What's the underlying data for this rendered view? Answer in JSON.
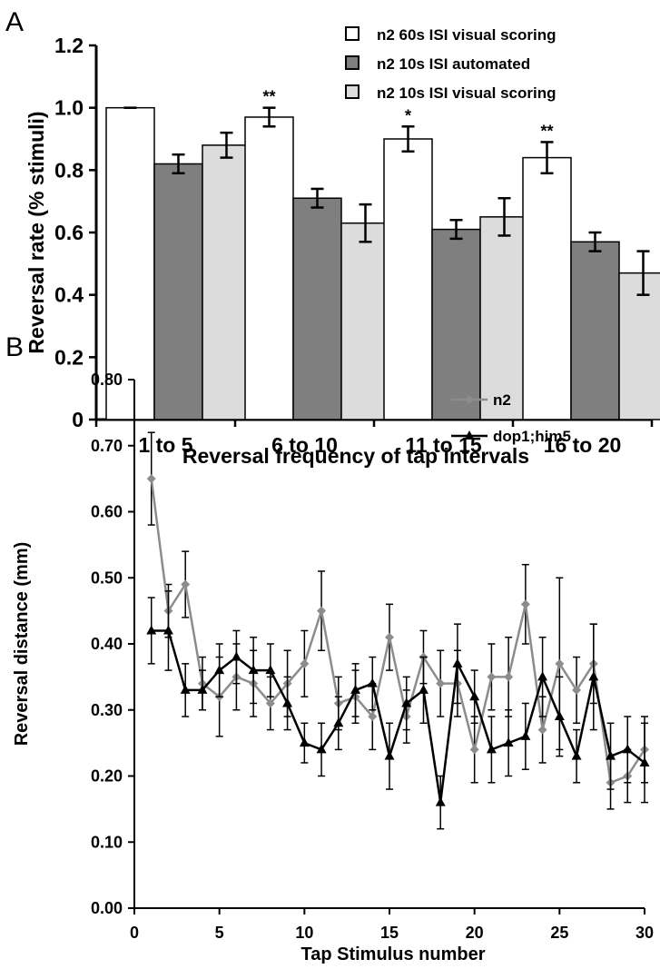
{
  "figure": {
    "panel_a_letter": "A",
    "panel_b_letter": "B"
  },
  "chart_data": [
    {
      "type": "bar",
      "xlabel": "Reversal frequency of tap intervals",
      "ylabel": "Reversal rate (% stimuli)",
      "ylim": [
        0,
        1.2
      ],
      "yticks": [
        "0",
        "0.2",
        "0.4",
        "0.6",
        "0.8",
        "1.0",
        "1.2"
      ],
      "ytick_values": [
        0,
        0.2,
        0.4,
        0.6,
        0.8,
        1.0,
        1.2
      ],
      "categories": [
        "1 to 5",
        "6 to 10",
        "11 to 15",
        "16 to 20"
      ],
      "series": [
        {
          "name": "n2 60s ISI visual scoring",
          "color": "#ffffff",
          "values": [
            1.0,
            0.97,
            0.9,
            0.84
          ],
          "errors": [
            0.0,
            0.03,
            0.04,
            0.05
          ]
        },
        {
          "name": "n2 10s ISI automated",
          "color": "#7f7f7f",
          "values": [
            0.82,
            0.71,
            0.61,
            0.57
          ],
          "errors": [
            0.03,
            0.03,
            0.03,
            0.03
          ]
        },
        {
          "name": "n2 10s ISI visual scoring",
          "color": "#dcdcdc",
          "values": [
            0.88,
            0.63,
            0.65,
            0.47
          ],
          "errors": [
            0.04,
            0.06,
            0.06,
            0.07
          ]
        }
      ],
      "significance": [
        "",
        "**",
        "*",
        "**"
      ],
      "legend_position": "top-right",
      "grid": false
    },
    {
      "type": "line",
      "xlabel": "Tap Stimulus number",
      "ylabel": "Reversal distance (mm)",
      "xlim": [
        0,
        30
      ],
      "ylim": [
        0,
        0.8
      ],
      "xticks": [
        "0",
        "5",
        "10",
        "15",
        "20",
        "25",
        "30"
      ],
      "xtick_values": [
        0,
        5,
        10,
        15,
        20,
        25,
        30
      ],
      "yticks": [
        "0.00",
        "0.10",
        "0.20",
        "0.30",
        "0.40",
        "0.50",
        "0.60",
        "0.70",
        "0.80"
      ],
      "ytick_values": [
        0,
        0.1,
        0.2,
        0.3,
        0.4,
        0.5,
        0.6,
        0.7,
        0.8
      ],
      "x": [
        1,
        2,
        3,
        4,
        5,
        6,
        7,
        8,
        9,
        10,
        11,
        12,
        13,
        14,
        15,
        16,
        17,
        18,
        19,
        20,
        21,
        22,
        23,
        24,
        25,
        26,
        27,
        28,
        29,
        30
      ],
      "series": [
        {
          "name": "n2",
          "color": "#8c8c8c",
          "marker": "diamond",
          "values": [
            0.65,
            0.45,
            0.49,
            0.34,
            0.32,
            0.35,
            0.34,
            0.31,
            0.34,
            0.37,
            0.45,
            0.31,
            0.32,
            0.29,
            0.41,
            0.29,
            0.38,
            0.34,
            0.34,
            0.24,
            0.35,
            0.35,
            0.46,
            0.27,
            0.37,
            0.33,
            0.37,
            0.19,
            0.2,
            0.24
          ],
          "errors": [
            0.07,
            0.04,
            0.05,
            0.04,
            0.06,
            0.05,
            0.05,
            0.04,
            0.05,
            0.05,
            0.06,
            0.04,
            0.04,
            0.05,
            0.05,
            0.04,
            0.04,
            0.05,
            0.05,
            0.05,
            0.05,
            0.06,
            0.06,
            0.05,
            0.13,
            0.05,
            0.06,
            0.04,
            0.04,
            0.05
          ]
        },
        {
          "name": "dop1;him5",
          "color": "#000000",
          "marker": "triangle",
          "values": [
            0.42,
            0.42,
            0.33,
            0.33,
            0.36,
            0.38,
            0.36,
            0.36,
            0.31,
            0.25,
            0.24,
            0.28,
            0.33,
            0.34,
            0.23,
            0.31,
            0.33,
            0.16,
            0.37,
            0.32,
            0.24,
            0.25,
            0.26,
            0.35,
            0.29,
            0.23,
            0.35,
            0.23,
            0.24,
            0.22
          ],
          "errors": [
            0.05,
            0.06,
            0.04,
            0.03,
            0.04,
            0.04,
            0.05,
            0.04,
            0.04,
            0.03,
            0.04,
            0.04,
            0.04,
            0.04,
            0.05,
            0.04,
            0.05,
            0.04,
            0.06,
            0.04,
            0.05,
            0.05,
            0.05,
            0.06,
            0.06,
            0.04,
            0.08,
            0.05,
            0.05,
            0.06
          ]
        }
      ],
      "legend_position": "top-right",
      "grid": false
    }
  ]
}
